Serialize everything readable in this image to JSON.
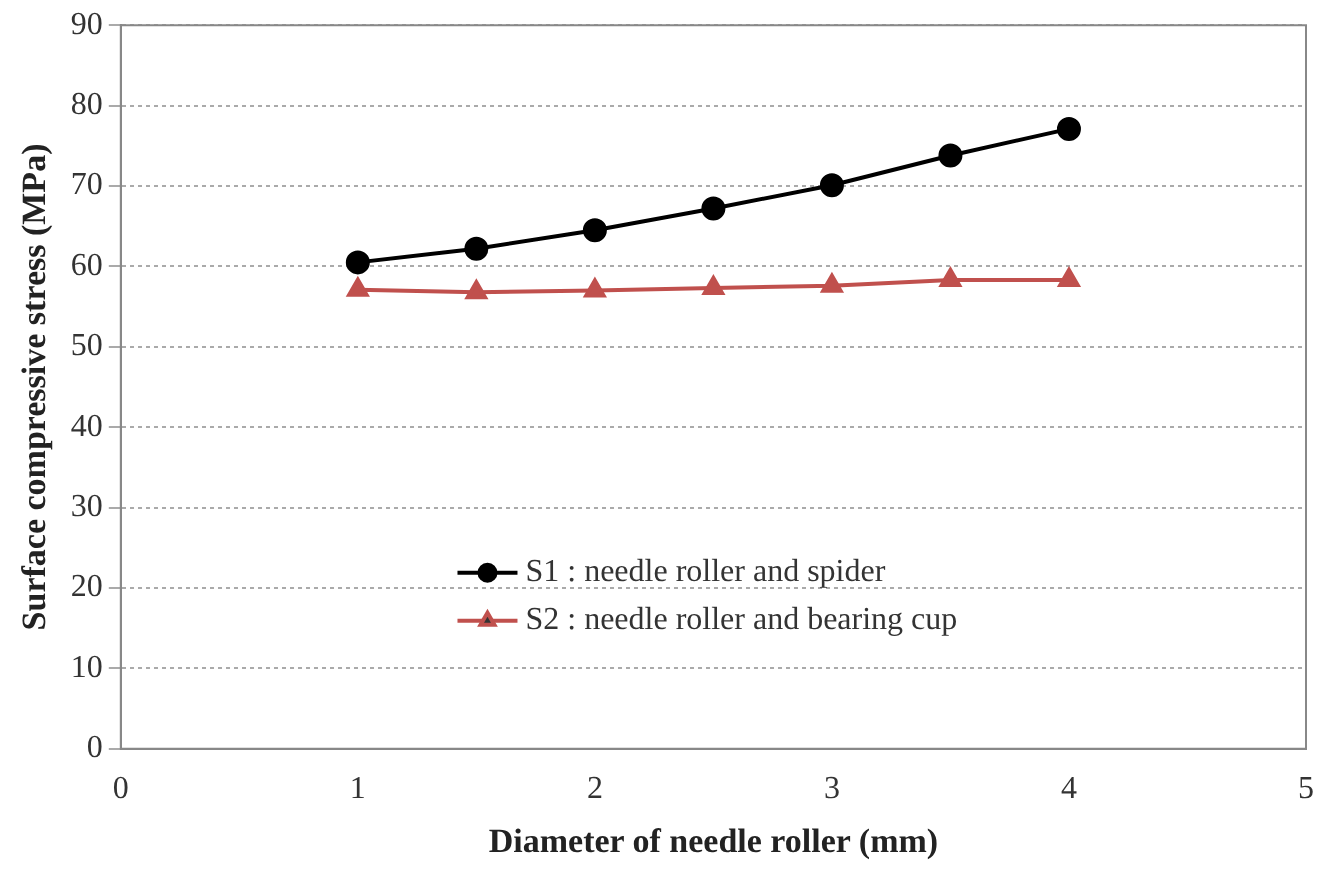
{
  "chart_data": {
    "type": "line",
    "xlabel": "Diameter of needle roller (mm)",
    "ylabel": "Surface compressive stress (MPa)",
    "x": [
      1,
      1.5,
      2,
      2.5,
      3,
      3.5,
      4
    ],
    "series": [
      {
        "name": "S1 : needle roller and spider",
        "color": "#000000",
        "marker": "circle",
        "values": [
          60.5,
          62.2,
          64.5,
          67.2,
          70.1,
          73.8,
          77.1
        ]
      },
      {
        "name": "S2 : needle roller and bearing cup",
        "color": "#c0504d",
        "marker": "triangle",
        "values": [
          57.1,
          56.8,
          57.0,
          57.3,
          57.6,
          58.3,
          58.3
        ]
      }
    ],
    "xlim": [
      0,
      5
    ],
    "xticks": [
      0,
      1,
      2,
      3,
      4,
      5
    ],
    "ylim": [
      0,
      90
    ],
    "yticks": [
      0,
      10,
      20,
      30,
      40,
      50,
      60,
      70,
      80,
      90
    ],
    "grid": "y",
    "legend": "bottom",
    "line_style": "solid"
  }
}
